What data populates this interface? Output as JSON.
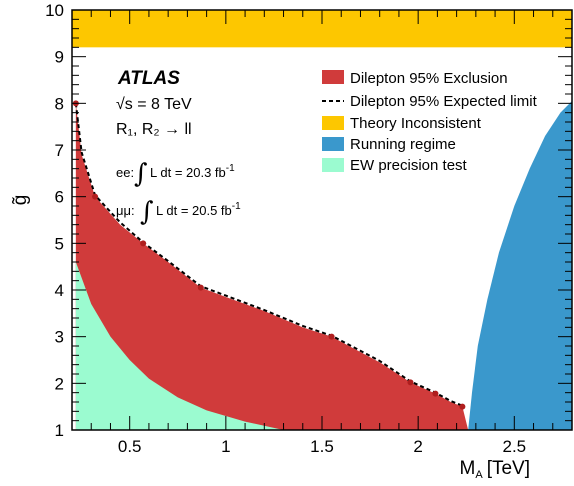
{
  "chart_data": {
    "type": "area",
    "xlabel": "M",
    "xlabel_sub": "A",
    "xlabel_unit": "[TeV]",
    "ylabel": "g̃",
    "xlim": [
      0.2,
      2.8
    ],
    "ylim": [
      1,
      10
    ],
    "x_ticks": [
      "0.5",
      "1",
      "1.5",
      "2",
      "2.5"
    ],
    "x_tick_values": [
      0.5,
      1,
      1.5,
      2,
      2.5
    ],
    "y_ticks": [
      "1",
      "2",
      "3",
      "4",
      "5",
      "6",
      "7",
      "8",
      "9",
      "10"
    ],
    "y_tick_values": [
      1,
      2,
      3,
      4,
      5,
      6,
      7,
      8,
      9,
      10
    ],
    "series": [
      {
        "name": "Dilepton 95% Exclusion",
        "color": "#d03b3b",
        "points": [
          [
            0.22,
            8.0
          ],
          [
            0.25,
            6.9
          ],
          [
            0.32,
            6.0
          ],
          [
            0.45,
            5.4
          ],
          [
            0.57,
            5.0
          ],
          [
            0.7,
            4.6
          ],
          [
            0.87,
            4.05
          ],
          [
            1.0,
            3.85
          ],
          [
            1.2,
            3.55
          ],
          [
            1.4,
            3.2
          ],
          [
            1.55,
            3.0
          ],
          [
            1.8,
            2.45
          ],
          [
            1.96,
            2.02
          ],
          [
            2.09,
            1.78
          ],
          [
            2.17,
            1.6
          ],
          [
            2.23,
            1.5
          ],
          [
            2.26,
            1.0
          ]
        ]
      },
      {
        "name": "Dilepton 95% Expected limit",
        "style": "dashed",
        "points": [
          [
            0.22,
            8.0
          ],
          [
            0.25,
            6.95
          ],
          [
            0.32,
            6.03
          ],
          [
            0.45,
            5.45
          ],
          [
            0.57,
            5.02
          ],
          [
            0.7,
            4.62
          ],
          [
            0.87,
            4.08
          ],
          [
            1.0,
            3.88
          ],
          [
            1.2,
            3.57
          ],
          [
            1.4,
            3.23
          ],
          [
            1.55,
            3.02
          ],
          [
            1.8,
            2.48
          ],
          [
            1.96,
            2.04
          ],
          [
            2.09,
            1.8
          ],
          [
            2.17,
            1.62
          ],
          [
            2.23,
            1.52
          ]
        ]
      },
      {
        "name": "Theory Inconsistent",
        "color": "#fdc700",
        "y_range": [
          9.2,
          10
        ]
      },
      {
        "name": "Running regime",
        "color": "#3a98cc",
        "points": [
          [
            2.26,
            1.0
          ],
          [
            2.28,
            1.8
          ],
          [
            2.31,
            2.8
          ],
          [
            2.36,
            3.8
          ],
          [
            2.42,
            4.8
          ],
          [
            2.5,
            5.8
          ],
          [
            2.58,
            6.6
          ],
          [
            2.66,
            7.3
          ],
          [
            2.74,
            7.8
          ],
          [
            2.8,
            8.05
          ],
          [
            2.8,
            1.0
          ]
        ]
      },
      {
        "name": "EW precision test",
        "color": "#9bfbd0",
        "points": [
          [
            0.22,
            4.6
          ],
          [
            0.3,
            3.7
          ],
          [
            0.4,
            3.0
          ],
          [
            0.5,
            2.5
          ],
          [
            0.6,
            2.1
          ],
          [
            0.75,
            1.7
          ],
          [
            0.9,
            1.42
          ],
          [
            1.1,
            1.18
          ],
          [
            1.3,
            1.0
          ]
        ]
      }
    ],
    "measured_points": [
      [
        0.22,
        8.0
      ],
      [
        0.32,
        6.0
      ],
      [
        0.57,
        5.0
      ],
      [
        0.87,
        4.05
      ],
      [
        1.55,
        3.0
      ],
      [
        1.96,
        2.02
      ],
      [
        2.09,
        1.78
      ],
      [
        2.23,
        1.5
      ]
    ],
    "legend_placement": "top-right",
    "grid": false
  },
  "annotations": {
    "experiment": "ATLAS",
    "energy": "√s = 8 TeV",
    "process": "R₁, R₂ → ll",
    "ee_label": "ee:",
    "ee_lumi": "L dt = 20.3 fb",
    "mumu_label": "μμ:",
    "mumu_lumi": "L dt = 20.5 fb",
    "lumi_exp": "-1"
  }
}
